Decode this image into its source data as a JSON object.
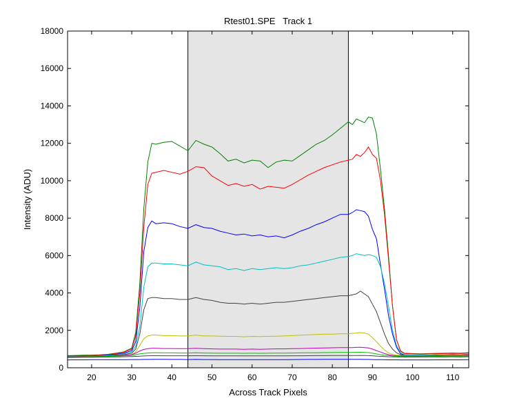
{
  "chart_data": {
    "type": "line",
    "title": "Rtest01.SPE   Track 1",
    "xlabel": "Across Track Pixels",
    "ylabel": "Intensity (ADU)",
    "xlim": [
      14,
      114
    ],
    "ylim": [
      0,
      18000
    ],
    "xticks": [
      20,
      30,
      40,
      50,
      60,
      70,
      80,
      90,
      100,
      110
    ],
    "yticks": [
      0,
      2000,
      4000,
      6000,
      8000,
      10000,
      12000,
      14000,
      16000,
      18000
    ],
    "grid": false,
    "legend": "none",
    "shaded_region": {
      "x_start": 44,
      "x_end": 84,
      "color": "#e5e5e5"
    },
    "x": [
      14,
      16,
      18,
      20,
      22,
      24,
      26,
      28,
      30,
      31,
      32,
      33,
      34,
      35,
      36,
      38,
      40,
      42,
      44,
      46,
      48,
      50,
      52,
      54,
      56,
      58,
      60,
      62,
      64,
      66,
      68,
      70,
      72,
      74,
      76,
      78,
      80,
      82,
      84,
      85,
      86,
      87,
      88,
      89,
      90,
      91,
      92,
      93,
      94,
      95,
      96,
      97,
      98,
      100,
      102,
      104,
      106,
      108,
      110,
      112,
      114
    ],
    "series": [
      {
        "color": "#008000",
        "values": [
          650,
          660,
          670,
          680,
          690,
          720,
          780,
          850,
          1050,
          1900,
          4500,
          8500,
          11000,
          12000,
          11950,
          12050,
          12100,
          11850,
          11600,
          12150,
          11950,
          11800,
          11450,
          11050,
          11150,
          10950,
          11100,
          11050,
          10700,
          11000,
          11100,
          11050,
          11350,
          11650,
          11950,
          12150,
          12450,
          12800,
          13150,
          13000,
          13300,
          13200,
          13100,
          13400,
          13350,
          12500,
          10600,
          8500,
          6000,
          3300,
          1500,
          900,
          780,
          760,
          750,
          760,
          770,
          780,
          790,
          780,
          810
        ]
      },
      {
        "color": "#ff0000",
        "values": [
          630,
          640,
          650,
          660,
          670,
          700,
          760,
          830,
          1000,
          1700,
          4000,
          7500,
          9800,
          10400,
          10450,
          10550,
          10450,
          10350,
          10500,
          10750,
          10700,
          10250,
          10000,
          9750,
          9850,
          9700,
          9800,
          9550,
          9700,
          9650,
          9600,
          9800,
          10050,
          10300,
          10500,
          10700,
          10850,
          11000,
          11100,
          11150,
          11400,
          11300,
          11500,
          11800,
          11400,
          11200,
          10000,
          8200,
          5800,
          3300,
          1500,
          880,
          760,
          740,
          730,
          740,
          750,
          760,
          770,
          760,
          790
        ]
      },
      {
        "color": "#0000ff",
        "values": [
          610,
          620,
          630,
          640,
          650,
          680,
          720,
          780,
          920,
          1400,
          3200,
          6200,
          7500,
          7850,
          7700,
          7750,
          7700,
          7550,
          7450,
          7650,
          7500,
          7450,
          7300,
          7200,
          7100,
          7150,
          7050,
          7100,
          7000,
          7050,
          6950,
          7100,
          7300,
          7450,
          7650,
          7800,
          8000,
          8200,
          8200,
          8300,
          8450,
          8400,
          8350,
          8100,
          7400,
          6900,
          5500,
          4200,
          2800,
          1800,
          1100,
          750,
          690,
          680,
          670,
          680,
          690,
          700,
          710,
          700,
          730
        ]
      },
      {
        "color": "#00bfbf",
        "values": [
          600,
          610,
          620,
          630,
          640,
          660,
          690,
          740,
          850,
          1150,
          2200,
          4300,
          5400,
          5600,
          5600,
          5550,
          5550,
          5500,
          5450,
          5650,
          5500,
          5450,
          5400,
          5250,
          5300,
          5200,
          5300,
          5250,
          5300,
          5350,
          5300,
          5350,
          5450,
          5500,
          5600,
          5700,
          5800,
          5900,
          5950,
          6000,
          6100,
          6050,
          6000,
          6050,
          6000,
          5900,
          5400,
          4500,
          3300,
          2000,
          1200,
          800,
          700,
          680,
          670,
          680,
          690,
          700,
          710,
          700,
          720
        ]
      },
      {
        "color": "#404040",
        "values": [
          590,
          600,
          610,
          620,
          630,
          640,
          670,
          700,
          780,
          1000,
          1800,
          3100,
          3700,
          3750,
          3750,
          3700,
          3700,
          3650,
          3650,
          3750,
          3650,
          3600,
          3500,
          3450,
          3450,
          3400,
          3450,
          3400,
          3450,
          3500,
          3500,
          3550,
          3600,
          3650,
          3700,
          3750,
          3800,
          3850,
          3850,
          3900,
          3950,
          4100,
          3950,
          3800,
          3400,
          3000,
          2400,
          1800,
          1300,
          1000,
          800,
          700,
          660,
          650,
          650,
          660,
          670,
          680,
          690,
          680,
          700
        ]
      },
      {
        "color": "#bfbf00",
        "values": [
          580,
          590,
          600,
          610,
          620,
          630,
          650,
          670,
          710,
          850,
          1200,
          1550,
          1700,
          1750,
          1750,
          1720,
          1720,
          1700,
          1700,
          1750,
          1700,
          1700,
          1690,
          1680,
          1680,
          1660,
          1680,
          1670,
          1680,
          1690,
          1700,
          1720,
          1740,
          1760,
          1780,
          1800,
          1800,
          1820,
          1820,
          1840,
          1860,
          1880,
          1850,
          1800,
          1600,
          1400,
          1150,
          950,
          800,
          720,
          680,
          650,
          640,
          640,
          640,
          650,
          660,
          670,
          680,
          670,
          690
        ]
      },
      {
        "color": "#bf00bf",
        "values": [
          570,
          580,
          590,
          600,
          610,
          620,
          640,
          660,
          700,
          780,
          900,
          980,
          1020,
          1040,
          1040,
          1030,
          1030,
          1020,
          1020,
          1040,
          1020,
          1010,
          1000,
          1000,
          1000,
          990,
          1000,
          990,
          1000,
          1010,
          1010,
          1020,
          1030,
          1040,
          1050,
          1060,
          1070,
          1080,
          1080,
          1080,
          1090,
          1100,
          1080,
          1060,
          1000,
          920,
          840,
          760,
          700,
          660,
          640,
          630,
          620,
          620,
          620,
          630,
          640,
          650,
          660,
          650,
          670
        ]
      },
      {
        "color": "#00bf00",
        "values": [
          560,
          570,
          580,
          590,
          600,
          610,
          620,
          640,
          660,
          700,
          740,
          770,
          790,
          800,
          800,
          795,
          795,
          790,
          790,
          800,
          790,
          785,
          780,
          780,
          780,
          775,
          780,
          775,
          780,
          785,
          785,
          790,
          795,
          800,
          805,
          810,
          815,
          820,
          820,
          820,
          825,
          830,
          820,
          810,
          780,
          740,
          700,
          670,
          650,
          630,
          620,
          610,
          605,
          600,
          600,
          605,
          610,
          615,
          620,
          615,
          630
        ]
      },
      {
        "color": "#404040",
        "values": [
          550,
          555,
          560,
          565,
          570,
          575,
          580,
          590,
          600,
          610,
          620,
          630,
          640,
          645,
          645,
          640,
          640,
          640,
          640,
          645,
          640,
          638,
          636,
          635,
          635,
          633,
          635,
          633,
          635,
          637,
          637,
          640,
          642,
          645,
          648,
          650,
          652,
          655,
          655,
          655,
          658,
          660,
          655,
          650,
          640,
          625,
          610,
          600,
          590,
          585,
          580,
          578,
          575,
          575,
          575,
          578,
          580,
          582,
          585,
          583,
          590
        ]
      },
      {
        "color": "#0000ff",
        "values": [
          420,
          425,
          425,
          430,
          430,
          430,
          435,
          435,
          440,
          440,
          440,
          445,
          445,
          445,
          450,
          450,
          445,
          445,
          440,
          445,
          440,
          438,
          436,
          435,
          435,
          433,
          435,
          433,
          435,
          437,
          437,
          440,
          442,
          445,
          448,
          450,
          450,
          452,
          450,
          450,
          452,
          450,
          448,
          445,
          440,
          435,
          430,
          428,
          425,
          425,
          423,
          422,
          420,
          420,
          420,
          422,
          424,
          425,
          426,
          425,
          430
        ]
      }
    ]
  }
}
